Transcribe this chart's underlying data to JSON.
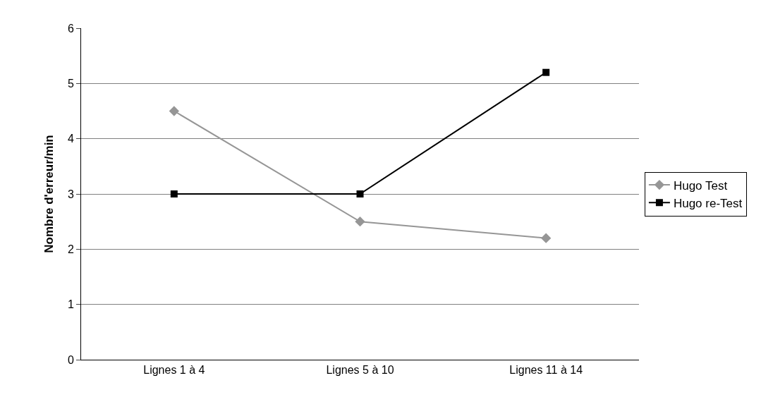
{
  "chart_data": {
    "type": "line",
    "ylabel": "Nombre d'erreur/min",
    "categories": [
      "Lignes 1 à 4",
      "Lignes 5 à 10",
      "Lignes 11 à 14"
    ],
    "series": [
      {
        "name": "Hugo Test",
        "color": "#969696",
        "values": [
          4.5,
          2.5,
          2.2
        ],
        "marker": "diamond"
      },
      {
        "name": "Hugo re-Test",
        "color": "#000000",
        "values": [
          3,
          3,
          5.2
        ],
        "marker": "square"
      }
    ],
    "ylim": [
      0,
      6
    ],
    "yticks": [
      0,
      1,
      2,
      3,
      4,
      5,
      6
    ],
    "grid": "y",
    "legend": "right",
    "line_style": "solid"
  }
}
